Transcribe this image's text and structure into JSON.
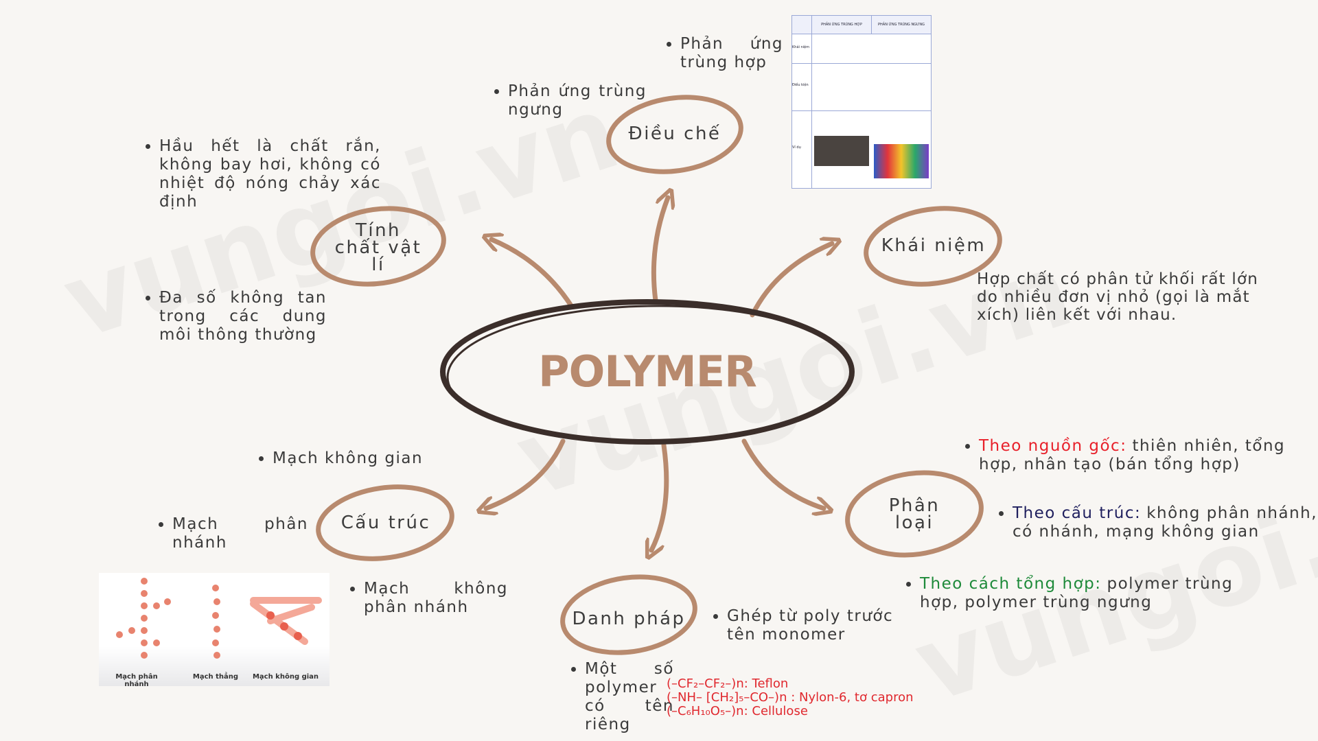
{
  "center": "POLYMER",
  "watermark": "vungoi.vn",
  "dieu_che": {
    "label": "Điều chế",
    "items": [
      "Phản ứng trùng hợp",
      "Phản ứng trùng ngưng"
    ],
    "table": {
      "headers": [
        "PHẢN ỨNG TRÙNG HỢP",
        "PHẢN ỨNG TRÙNG NGƯNG"
      ],
      "rows": [
        "Khái niệm",
        "Điều kiện",
        "Ví dụ"
      ]
    }
  },
  "tinh_chat": {
    "label": "Tính chất vật lí",
    "items": [
      "Hầu hết là chất rắn, không bay hơi, không có nhiệt độ nóng chảy xác định",
      "Đa số không tan trong các dung môi thông thường"
    ]
  },
  "khai_niem": {
    "label": "Khái niệm",
    "text": "Hợp chất có phân tử khối rất lớn do nhiều đơn vị nhỏ (gọi là mắt xích) liên kết với nhau."
  },
  "cau_truc": {
    "label": "Cấu trúc",
    "items": [
      "Mạch không gian",
      "Mạch phân nhánh",
      "Mạch không phân nhánh"
    ],
    "figure_labels": [
      "Mạch phân nhánh",
      "Mạch thẳng",
      "Mạch không gian"
    ]
  },
  "phan_loai": {
    "label": "Phân loại",
    "items": [
      {
        "key": "Theo nguồn gốc:",
        "text": "thiên nhiên, tổng hợp, nhân tạo (bán tổng hợp)"
      },
      {
        "key": "Theo cấu trúc:",
        "text": "không phân nhánh, có nhánh, mạng không gian"
      },
      {
        "key": "Theo cách tổng hợp:",
        "text": "polymer trùng hợp, polymer trùng ngưng"
      }
    ]
  },
  "danh_phap": {
    "label": "Danh pháp",
    "items": [
      "Ghép từ poly trước tên monomer",
      "Một số polymer có tên riêng"
    ],
    "examples": [
      "(–CF₂–CF₂–)n: Teflon",
      "(–NH– [CH₂]₅–CO–)n : Nylon-6, tơ capron",
      "(–C₆H₁₀O₅–)n: Cellulose"
    ]
  }
}
